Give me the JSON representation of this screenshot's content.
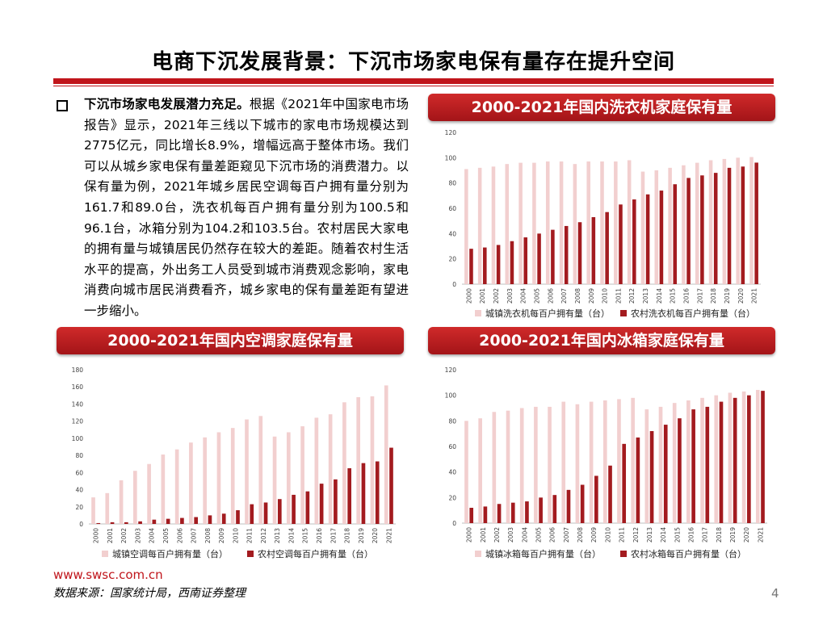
{
  "page": {
    "title": "电商下沉发展背景：下沉市场家电保有量存在提升空间",
    "bullet_lead": "下沉市场家电发展潜力充足。",
    "bullet_body": "根据《2021年中国家电市场报告》显示，2021年三线以下城市的家电市场规模达到2775亿元，同比增长8.9%，增幅远高于整体市场。我们可以从城乡家电保有量差距窥见下沉市场的消费潜力。以保有量为例，2021年城乡居民空调每百户拥有量分别为161.7和89.0台，洗衣机每百户拥有量分别为100.5和96.1台，冰箱分别为104.2和103.5台。农村居民大家电的拥有量与城镇居民仍然存在较大的差距。随着农村生活水平的提高，外出务工人员受到城市消费观念影响，家电消费向城市居民消费看齐，城乡家电的保有量差距有望进一步缩小。",
    "url": "www.swsc.com.cn",
    "source": "数据来源：国家统计局，西南证券整理",
    "page_number": "4"
  },
  "colors": {
    "urban": "#f2cfcf",
    "rural": "#a31b1f",
    "axis": "#bfbfbf",
    "tick_text": "#404040"
  },
  "chart_data": [
    {
      "id": "washer",
      "type": "bar",
      "title": "2000-2021年国内洗衣机家庭保有量",
      "categories": [
        "2000",
        "2001",
        "2002",
        "2003",
        "2004",
        "2005",
        "2006",
        "2007",
        "2008",
        "2009",
        "2010",
        "2011",
        "2012",
        "2013",
        "2014",
        "2015",
        "2016",
        "2017",
        "2018",
        "2019",
        "2020",
        "2021"
      ],
      "series": [
        {
          "name": "城镇洗衣机每百户拥有量（台）",
          "values": [
            91,
            92,
            93,
            95,
            96,
            96,
            97,
            97,
            95,
            97,
            97,
            97,
            98,
            89,
            90,
            92,
            94,
            96,
            98,
            99,
            100,
            100.5
          ]
        },
        {
          "name": "农村洗衣机每百户拥有量（台）",
          "values": [
            28,
            29,
            31,
            34,
            37,
            40,
            43,
            46,
            49,
            53,
            57,
            63,
            67,
            71,
            74,
            79,
            84,
            86,
            88,
            92,
            93,
            96.1
          ]
        }
      ],
      "ylim": [
        0,
        120
      ],
      "yticks": [
        0,
        20,
        40,
        60,
        80,
        100,
        120
      ]
    },
    {
      "id": "ac",
      "type": "bar",
      "title": "2000-2021年国内空调家庭保有量",
      "categories": [
        "2000",
        "2001",
        "2002",
        "2003",
        "2004",
        "2005",
        "2006",
        "2007",
        "2008",
        "2009",
        "2010",
        "2011",
        "2012",
        "2013",
        "2014",
        "2015",
        "2016",
        "2017",
        "2018",
        "2019",
        "2020",
        "2021"
      ],
      "series": [
        {
          "name": "城镇空调每百户拥有量（台）",
          "values": [
            31,
            36,
            51,
            62,
            70,
            81,
            87,
            95,
            101,
            107,
            112,
            122,
            126,
            102,
            107,
            114,
            124,
            128,
            142,
            148,
            149,
            161.7
          ]
        },
        {
          "name": "农村空调每百户拥有量（台）",
          "values": [
            1,
            2,
            2,
            3,
            5,
            6,
            7,
            8,
            10,
            12,
            16,
            23,
            25,
            29,
            34,
            38,
            47,
            52,
            65,
            71,
            73,
            89.0
          ]
        }
      ],
      "ylim": [
        0,
        180
      ],
      "yticks": [
        0,
        20,
        40,
        60,
        80,
        100,
        120,
        140,
        160,
        180
      ]
    },
    {
      "id": "fridge",
      "type": "bar",
      "title": "2000-2021年国内冰箱家庭保有量",
      "categories": [
        "2000",
        "2001",
        "2002",
        "2003",
        "2004",
        "2005",
        "2006",
        "2007",
        "2008",
        "2009",
        "2010",
        "2011",
        "2012",
        "2013",
        "2014",
        "2015",
        "2016",
        "2017",
        "2018",
        "2019",
        "2020",
        "2021"
      ],
      "series": [
        {
          "name": "城镇冰箱每百户拥有量（台）",
          "values": [
            80,
            82,
            87,
            88,
            90,
            91,
            91,
            95,
            93,
            95,
            96,
            97,
            98,
            89,
            91,
            94,
            96,
            98,
            100,
            102,
            103,
            104.2
          ]
        },
        {
          "name": "农村冰箱每百户拥有量（台）",
          "values": [
            12,
            13,
            15,
            16,
            17,
            20,
            22,
            26,
            30,
            37,
            45,
            62,
            67,
            72,
            77,
            82,
            89,
            91,
            95,
            98,
            100,
            103.5
          ]
        }
      ],
      "ylim": [
        0,
        120
      ],
      "yticks": [
        0,
        20,
        40,
        60,
        80,
        100,
        120
      ]
    }
  ]
}
